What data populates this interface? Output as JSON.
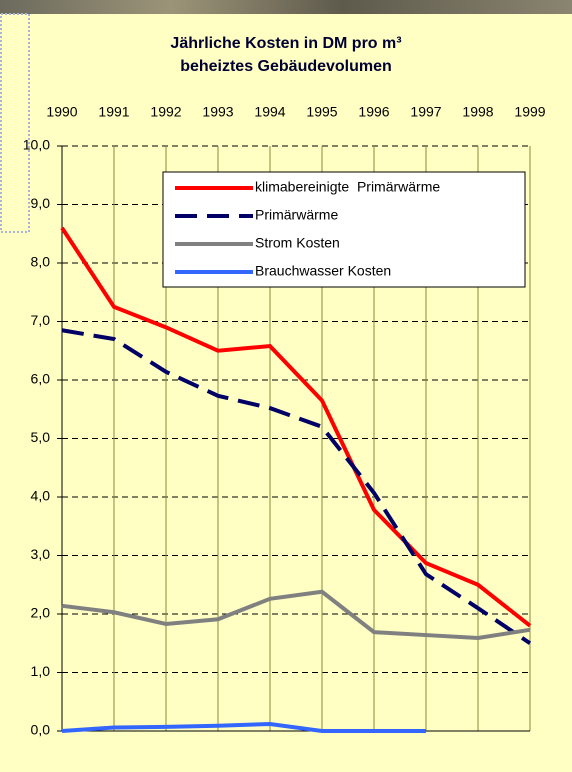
{
  "chart_data": {
    "type": "line",
    "title": [
      "Jährliche Kosten in DM pro m³",
      "beheiztes Gebäudevolumen"
    ],
    "categories": [
      "1990",
      "1991",
      "1992",
      "1993",
      "1994",
      "1995",
      "1996",
      "1997",
      "1998",
      "1999"
    ],
    "series": [
      {
        "name": "klimabereinigte  Primärwärme",
        "color": "#ff0000",
        "dash": "solid",
        "values": [
          8.6,
          7.25,
          6.9,
          6.5,
          6.58,
          5.65,
          3.78,
          2.87,
          2.5,
          1.8
        ]
      },
      {
        "name": "Primärwärme",
        "color": "#000066",
        "dash": "dashed",
        "values": [
          6.85,
          6.7,
          6.14,
          5.73,
          5.52,
          5.2,
          4.07,
          2.68,
          2.1,
          1.5
        ]
      },
      {
        "name": "Strom Kosten",
        "color": "#808080",
        "dash": "solid",
        "values": [
          2.14,
          2.03,
          1.83,
          1.91,
          2.26,
          2.38,
          1.69,
          1.64,
          1.59,
          1.73
        ]
      },
      {
        "name": "Brauchwasser Kosten",
        "color": "#3366ff",
        "dash": "solid",
        "values": [
          0,
          0.06,
          0.07,
          0.09,
          0.12,
          0,
          0,
          0,
          null,
          null
        ]
      }
    ],
    "ylim": [
      0,
      10
    ],
    "yticks": [
      {
        "value": 0,
        "label": "0,0"
      },
      {
        "value": 1,
        "label": "1,0"
      },
      {
        "value": 2,
        "label": "2,0"
      },
      {
        "value": 3,
        "label": "3,0"
      },
      {
        "value": 4,
        "label": "4,0"
      },
      {
        "value": 5,
        "label": "5,0"
      },
      {
        "value": 6,
        "label": "6,0"
      },
      {
        "value": 7,
        "label": "7,0"
      },
      {
        "value": 8,
        "label": "8,0"
      },
      {
        "value": 9,
        "label": "9,0"
      },
      {
        "value": 10,
        "label": "10,0"
      }
    ],
    "grid": true,
    "legend": "top-right"
  }
}
